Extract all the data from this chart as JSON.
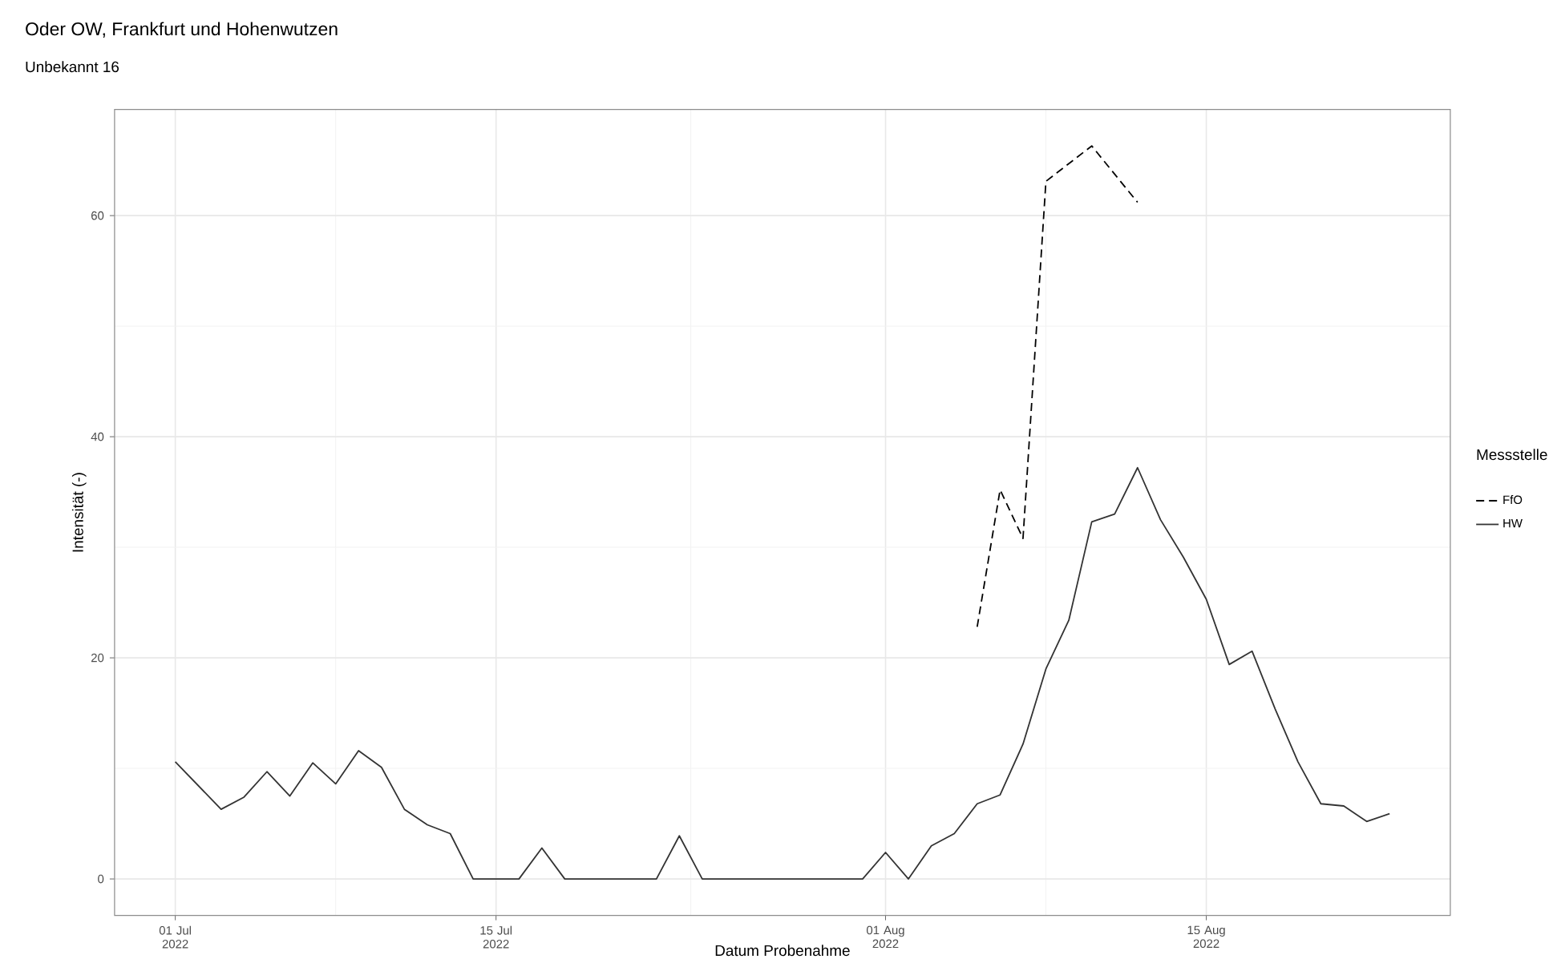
{
  "chart_data": {
    "type": "line",
    "title": "Oder OW, Frankfurt und Hohenwutzen",
    "subtitle": "Unbekannt 16",
    "xlabel": "Datum Probenahme",
    "ylabel": "Intensität (-)",
    "legend_title": "Messstelle",
    "legend": "right",
    "grid": true,
    "xlim": [
      "2022-06-28T08:24",
      "2022-08-25T15:36"
    ],
    "ylim": [
      -3.3,
      69.6
    ],
    "xticks": [
      {
        "value": "2022-07-01",
        "label": "01 Jul 2022"
      },
      {
        "value": "2022-07-15",
        "label": "15 Jul 2022"
      },
      {
        "value": "2022-08-01",
        "label": "01 Aug 2022"
      },
      {
        "value": "2022-08-15",
        "label": "15 Aug 2022"
      }
    ],
    "yticks": [
      0,
      20,
      40,
      60
    ],
    "series": [
      {
        "name": "FfO",
        "color": "#000000",
        "line_style": "dashed",
        "x": [
          "2022-08-05",
          "2022-08-06",
          "2022-08-07",
          "2022-08-08",
          "2022-08-10",
          "2022-08-12"
        ],
        "values": [
          22.8,
          35.2,
          30.8,
          63.1,
          66.3,
          61.2
        ]
      },
      {
        "name": "HW",
        "color": "#333333",
        "line_style": "solid",
        "x": [
          "2022-07-01",
          "2022-07-03",
          "2022-07-04",
          "2022-07-05",
          "2022-07-06",
          "2022-07-07",
          "2022-07-08",
          "2022-07-09",
          "2022-07-10",
          "2022-07-11",
          "2022-07-12",
          "2022-07-13",
          "2022-07-14",
          "2022-07-16",
          "2022-07-17",
          "2022-07-18",
          "2022-07-22",
          "2022-07-23",
          "2022-07-24",
          "2022-07-31",
          "2022-08-01",
          "2022-08-02",
          "2022-08-03",
          "2022-08-04",
          "2022-08-05",
          "2022-08-06",
          "2022-08-07",
          "2022-08-08",
          "2022-08-09",
          "2022-08-10",
          "2022-08-11",
          "2022-08-12",
          "2022-08-13",
          "2022-08-14",
          "2022-08-15",
          "2022-08-16",
          "2022-08-17",
          "2022-08-18",
          "2022-08-19",
          "2022-08-20",
          "2022-08-21",
          "2022-08-22",
          "2022-08-23"
        ],
        "values": [
          10.6,
          6.3,
          7.4,
          9.7,
          7.5,
          10.5,
          8.6,
          11.6,
          10.1,
          6.3,
          4.9,
          4.1,
          0,
          0,
          2.8,
          0,
          0,
          3.9,
          0,
          0,
          2.4,
          0,
          3.0,
          4.1,
          6.8,
          7.6,
          12.2,
          19.0,
          23.4,
          32.3,
          33.0,
          37.2,
          32.5,
          29.1,
          25.3,
          19.4,
          20.6,
          15.4,
          10.6,
          6.8,
          6.6,
          5.2,
          5.9
        ]
      }
    ]
  }
}
